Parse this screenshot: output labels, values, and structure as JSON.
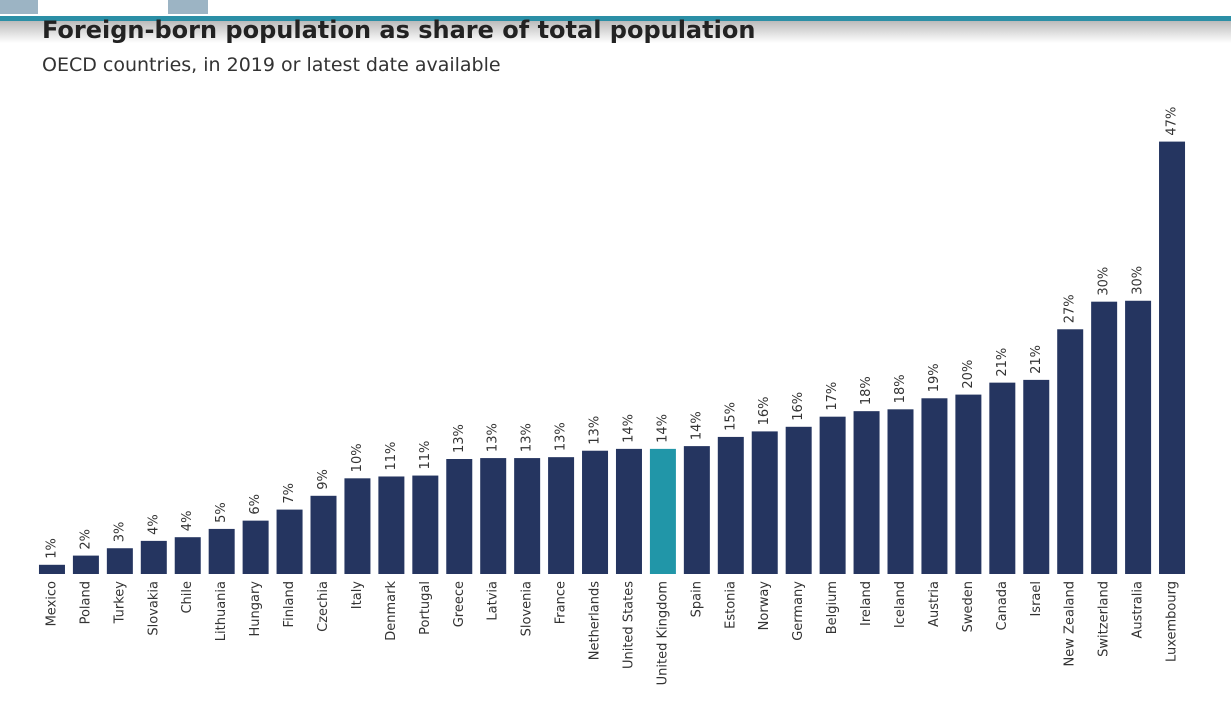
{
  "chart_data": {
    "type": "bar",
    "title": "Foreign-born population as share of total population",
    "subtitle": "OECD countries, in 2019 or latest date available",
    "categories": [
      "Mexico",
      "Poland",
      "Turkey",
      "Slovakia",
      "Chile",
      "Lithuania",
      "Hungary",
      "Finland",
      "Czechia",
      "Italy",
      "Denmark",
      "Portugal",
      "Greece",
      "Latvia",
      "Slovenia",
      "France",
      "Netherlands",
      "United States",
      "United Kingdom",
      "Spain",
      "Estonia",
      "Norway",
      "Germany",
      "Belgium",
      "Ireland",
      "Iceland",
      "Austria",
      "Sweden",
      "Canada",
      "Israel",
      "New Zealand",
      "Switzerland",
      "Australia",
      "Luxembourg"
    ],
    "values": [
      1.0,
      2.0,
      2.8,
      3.6,
      4.0,
      4.9,
      5.8,
      7.0,
      8.5,
      10.4,
      10.6,
      10.7,
      12.5,
      12.6,
      12.6,
      12.7,
      13.4,
      13.6,
      13.6,
      13.9,
      14.9,
      15.5,
      16.0,
      17.1,
      17.7,
      17.9,
      19.1,
      19.5,
      20.8,
      21.1,
      26.6,
      29.6,
      29.7,
      47.0
    ],
    "value_labels": [
      "1%",
      "2%",
      "3%",
      "4%",
      "4%",
      "5%",
      "6%",
      "7%",
      "9%",
      "10%",
      "11%",
      "11%",
      "13%",
      "13%",
      "13%",
      "13%",
      "13%",
      "14%",
      "14%",
      "14%",
      "15%",
      "16%",
      "16%",
      "17%",
      "18%",
      "18%",
      "19%",
      "20%",
      "21%",
      "21%",
      "27%",
      "30%",
      "30%",
      "47%"
    ],
    "colors": [
      "#253560",
      "#253560",
      "#253560",
      "#253560",
      "#253560",
      "#253560",
      "#253560",
      "#253560",
      "#253560",
      "#253560",
      "#253560",
      "#253560",
      "#253560",
      "#253560",
      "#253560",
      "#253560",
      "#253560",
      "#253560",
      "#2196a8",
      "#253560",
      "#253560",
      "#253560",
      "#253560",
      "#253560",
      "#253560",
      "#253560",
      "#253560",
      "#253560",
      "#253560",
      "#253560",
      "#253560",
      "#253560",
      "#253560",
      "#253560"
    ],
    "ylim": [
      0,
      50
    ]
  }
}
